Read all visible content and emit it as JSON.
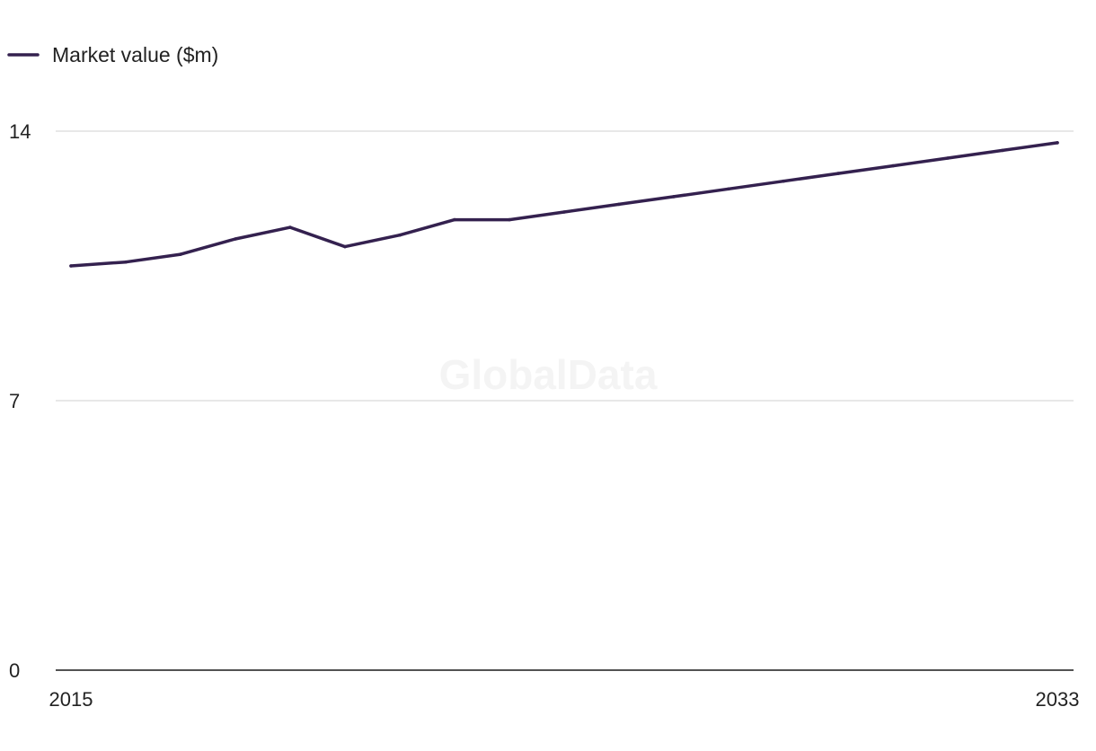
{
  "chart_data": {
    "type": "line",
    "title": "",
    "xlabel": "",
    "ylabel": "",
    "watermark": "GlobalData",
    "legend": {
      "position": "top-left",
      "entries": [
        "Market value ($m)"
      ]
    },
    "x": [
      2015,
      2016,
      2017,
      2018,
      2019,
      2020,
      2021,
      2022,
      2023,
      2024,
      2025,
      2026,
      2027,
      2028,
      2029,
      2030,
      2031,
      2032,
      2033
    ],
    "x_tick_labels": [
      "2015",
      "2033"
    ],
    "y_ticks": [
      0,
      7,
      14
    ],
    "y_tick_labels": [
      "0",
      "7",
      "14"
    ],
    "xlim": [
      2015,
      2033
    ],
    "ylim": [
      0,
      14
    ],
    "grid": true,
    "series": [
      {
        "name": "Market value ($m)",
        "color": "#34214f",
        "values": [
          10.5,
          10.6,
          10.8,
          11.2,
          11.5,
          11.0,
          11.3,
          11.7,
          11.7,
          11.9,
          12.1,
          12.3,
          12.5,
          12.7,
          12.9,
          13.1,
          13.3,
          13.5,
          13.7
        ]
      }
    ]
  }
}
